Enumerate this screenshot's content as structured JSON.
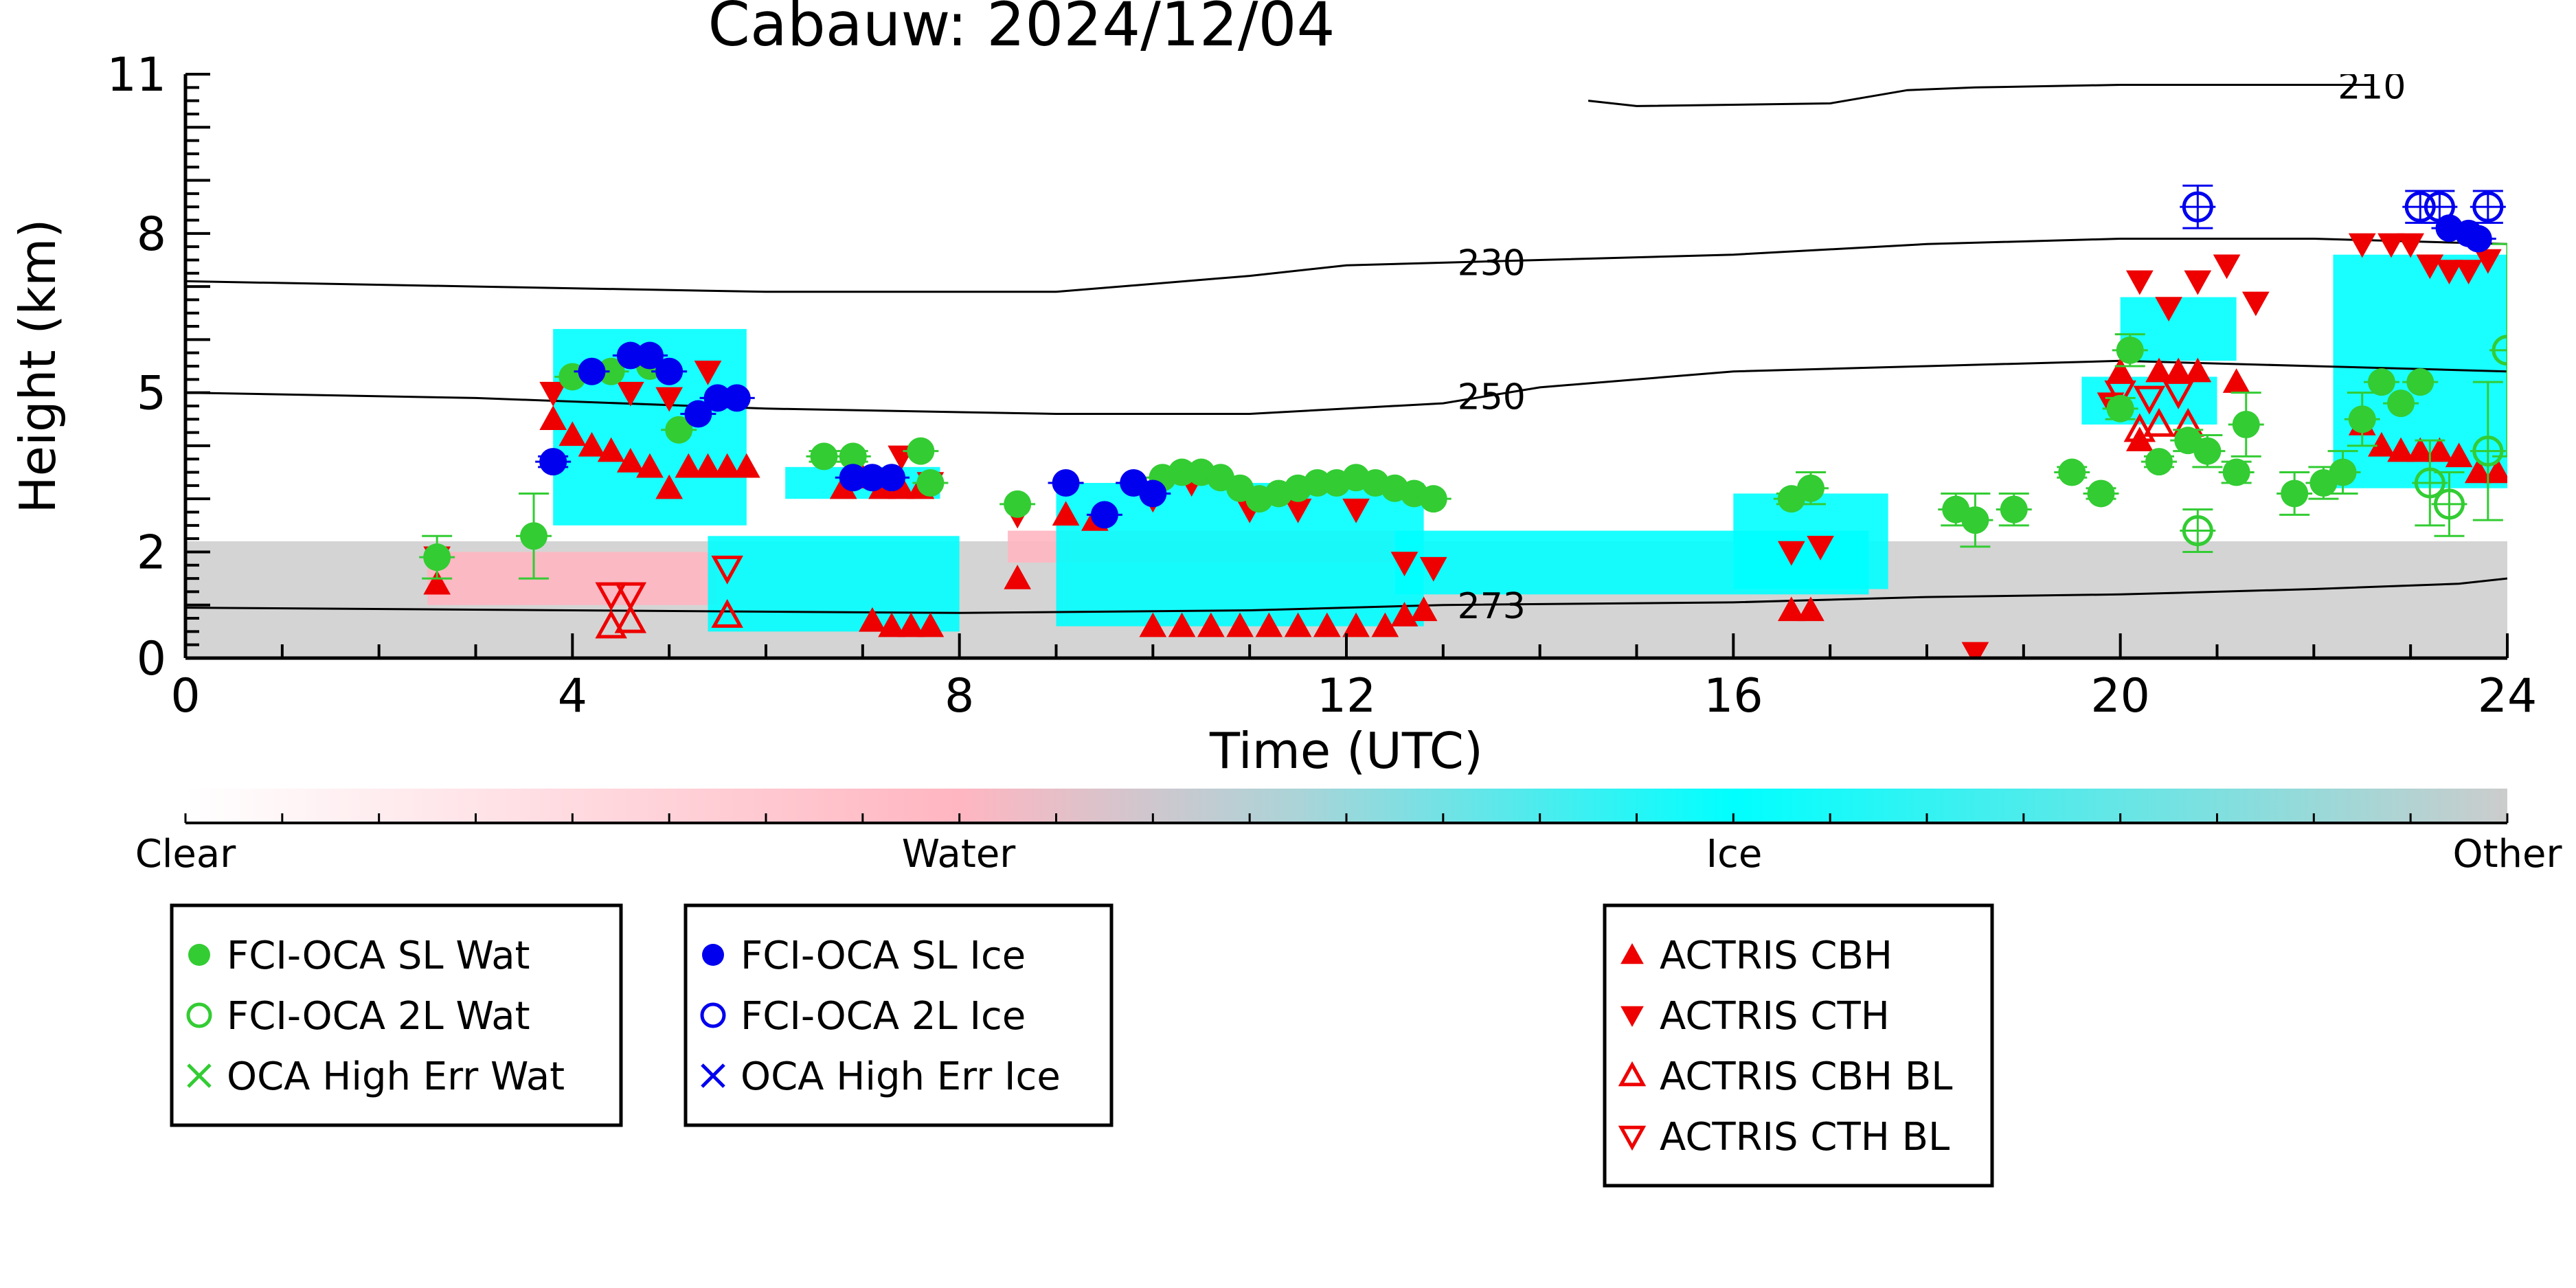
{
  "chart_data": {
    "type": "scatter",
    "title": "Cabauw: 2024/12/04",
    "xlabel": "Time (UTC)",
    "ylabel": "Height (km)",
    "xlim": [
      0,
      24
    ],
    "ylim": [
      0,
      11
    ],
    "x_ticks": [
      0,
      4,
      8,
      12,
      16,
      20,
      24
    ],
    "y_ticks": [
      0,
      2,
      5,
      8,
      11
    ],
    "colors": {
      "water_marker": "#33cc33",
      "ice_marker": "#0000ee",
      "actris": "#ee0000",
      "cloud_water": "#ffb6c1",
      "cloud_ice": "#00ffff",
      "cloud_other": "#cccccc"
    },
    "colorbar": {
      "labels": [
        "Clear",
        "Water",
        "Ice",
        "Other"
      ],
      "positions": [
        0,
        0.333,
        0.667,
        1
      ]
    },
    "contours": [
      {
        "label": "230",
        "label_x": 13.5,
        "points": [
          [
            0,
            7.1
          ],
          [
            3,
            7.0
          ],
          [
            6,
            6.9
          ],
          [
            9,
            6.9
          ],
          [
            11,
            7.2
          ],
          [
            12,
            7.4
          ],
          [
            14,
            7.5
          ],
          [
            16,
            7.6
          ],
          [
            18,
            7.8
          ],
          [
            20,
            7.9
          ],
          [
            22,
            7.9
          ],
          [
            24,
            7.8
          ]
        ]
      },
      {
        "label": "250",
        "label_x": 13.5,
        "points": [
          [
            0,
            5.0
          ],
          [
            3,
            4.9
          ],
          [
            6,
            4.7
          ],
          [
            9,
            4.6
          ],
          [
            11,
            4.6
          ],
          [
            13,
            4.8
          ],
          [
            14,
            5.1
          ],
          [
            16,
            5.4
          ],
          [
            18,
            5.5
          ],
          [
            20,
            5.6
          ],
          [
            22,
            5.5
          ],
          [
            24,
            5.4
          ]
        ]
      },
      {
        "label": "273",
        "label_x": 13.5,
        "points": [
          [
            0,
            0.95
          ],
          [
            4,
            0.9
          ],
          [
            8,
            0.85
          ],
          [
            11,
            0.9
          ],
          [
            13,
            1.0
          ],
          [
            16,
            1.05
          ],
          [
            18,
            1.15
          ],
          [
            20,
            1.2
          ],
          [
            22,
            1.3
          ],
          [
            23.5,
            1.4
          ],
          [
            24,
            1.5
          ]
        ]
      },
      {
        "label": "210",
        "label_x": 27.4,
        "points": [
          [
            14.5,
            10.5
          ],
          [
            15,
            10.4
          ],
          [
            17,
            10.45
          ],
          [
            17.8,
            10.7
          ],
          [
            18.5,
            10.75
          ],
          [
            20,
            10.8
          ],
          [
            21.4,
            10.8
          ],
          [
            22.6,
            10.8
          ]
        ]
      }
    ],
    "clouds": [
      {
        "kind": "other",
        "x0": 0,
        "x1": 24,
        "y0": 0,
        "y1": 2.2
      },
      {
        "kind": "water",
        "x0": 2.5,
        "x1": 5.5,
        "y0": 1.0,
        "y1": 2.0
      },
      {
        "kind": "water",
        "x0": 8.5,
        "x1": 12.5,
        "y0": 1.8,
        "y1": 2.4
      },
      {
        "kind": "ice",
        "x0": 3.8,
        "x1": 5.8,
        "y0": 2.5,
        "y1": 6.2
      },
      {
        "kind": "ice",
        "x0": 5.4,
        "x1": 8.0,
        "y0": 0.5,
        "y1": 2.3
      },
      {
        "kind": "ice",
        "x0": 6.2,
        "x1": 7.8,
        "y0": 3.0,
        "y1": 3.6
      },
      {
        "kind": "ice",
        "x0": 9.0,
        "x1": 12.8,
        "y0": 0.6,
        "y1": 3.3
      },
      {
        "kind": "ice",
        "x0": 12.5,
        "x1": 17.4,
        "y0": 1.2,
        "y1": 2.4
      },
      {
        "kind": "ice",
        "x0": 16.0,
        "x1": 17.6,
        "y0": 1.3,
        "y1": 3.1
      },
      {
        "kind": "ice",
        "x0": 20.0,
        "x1": 21.2,
        "y0": 5.6,
        "y1": 6.8
      },
      {
        "kind": "ice",
        "x0": 22.2,
        "x1": 24.0,
        "y0": 3.2,
        "y1": 7.6
      },
      {
        "kind": "ice",
        "x0": 19.6,
        "x1": 21.0,
        "y0": 4.4,
        "y1": 5.3
      }
    ],
    "series": [
      {
        "name": "FCI-OCA SL Wat",
        "marker": "circle-filled",
        "color": "#33cc33",
        "points": [
          [
            2.6,
            1.9,
            0.4
          ],
          [
            3.6,
            2.3,
            0.8
          ],
          [
            4.0,
            5.3,
            0
          ],
          [
            4.4,
            5.4,
            0
          ],
          [
            4.8,
            5.5,
            0
          ],
          [
            5.1,
            4.3,
            0
          ],
          [
            6.6,
            3.8,
            0.1
          ],
          [
            6.9,
            3.8,
            0.1
          ],
          [
            7.6,
            3.9,
            0
          ],
          [
            7.7,
            3.3,
            0
          ],
          [
            8.6,
            2.9,
            0
          ],
          [
            10.1,
            3.4,
            0
          ],
          [
            10.3,
            3.5,
            0
          ],
          [
            10.5,
            3.5,
            0
          ],
          [
            10.7,
            3.4,
            0
          ],
          [
            10.9,
            3.2,
            0
          ],
          [
            11.1,
            3.0,
            0
          ],
          [
            11.3,
            3.1,
            0
          ],
          [
            11.5,
            3.2,
            0
          ],
          [
            11.7,
            3.3,
            0
          ],
          [
            11.9,
            3.3,
            0
          ],
          [
            12.1,
            3.4,
            0
          ],
          [
            12.3,
            3.3,
            0
          ],
          [
            12.5,
            3.2,
            0
          ],
          [
            12.7,
            3.1,
            0
          ],
          [
            12.9,
            3.0,
            0
          ],
          [
            16.6,
            3.0,
            0.1
          ],
          [
            16.8,
            3.2,
            0.3
          ],
          [
            18.3,
            2.8,
            0.3
          ],
          [
            18.5,
            2.6,
            0.5
          ],
          [
            18.9,
            2.8,
            0.3
          ],
          [
            19.5,
            3.5,
            0.1
          ],
          [
            19.8,
            3.1,
            0.1
          ],
          [
            20.0,
            4.7,
            0.2
          ],
          [
            20.1,
            5.8,
            0.3
          ],
          [
            20.4,
            3.7,
            0.1
          ],
          [
            20.7,
            4.1,
            0.2
          ],
          [
            20.9,
            3.9,
            0.3
          ],
          [
            21.2,
            3.5,
            0.2
          ],
          [
            21.3,
            4.4,
            0.6
          ],
          [
            21.8,
            3.1,
            0.4
          ],
          [
            22.1,
            3.3,
            0.3
          ],
          [
            22.3,
            3.5,
            0.4
          ],
          [
            22.5,
            4.5,
            0.5
          ],
          [
            22.7,
            5.2,
            0
          ],
          [
            22.9,
            4.8,
            0
          ],
          [
            23.1,
            5.2,
            0
          ]
        ]
      },
      {
        "name": "FCI-OCA 2L Wat",
        "marker": "circle-open",
        "color": "#33cc33",
        "points": [
          [
            20.8,
            2.4,
            0.4
          ],
          [
            23.2,
            3.3,
            0.8
          ],
          [
            23.4,
            2.9,
            0.6
          ],
          [
            23.8,
            3.9,
            1.3
          ],
          [
            24.0,
            5.8,
            2.0
          ]
        ]
      },
      {
        "name": "OCA High Err Wat",
        "marker": "x",
        "color": "#33cc33",
        "points": []
      },
      {
        "name": "FCI-OCA SL Ice",
        "marker": "circle-filled",
        "color": "#0000ee",
        "points": [
          [
            3.8,
            3.7,
            0.1
          ],
          [
            4.2,
            5.4,
            0
          ],
          [
            4.6,
            5.7,
            0
          ],
          [
            4.8,
            5.7,
            0
          ],
          [
            5.0,
            5.4,
            0
          ],
          [
            5.3,
            4.6,
            0
          ],
          [
            5.5,
            4.9,
            0
          ],
          [
            5.7,
            4.9,
            0
          ],
          [
            6.9,
            3.4,
            0
          ],
          [
            7.1,
            3.4,
            0
          ],
          [
            7.3,
            3.4,
            0
          ],
          [
            9.1,
            3.3,
            0
          ],
          [
            9.5,
            2.7,
            0
          ],
          [
            9.8,
            3.3,
            0
          ],
          [
            10.0,
            3.1,
            0
          ],
          [
            23.4,
            8.1,
            0
          ],
          [
            23.6,
            8.0,
            0
          ],
          [
            23.7,
            7.9,
            0
          ]
        ]
      },
      {
        "name": "FCI-OCA 2L Ice",
        "marker": "circle-open",
        "color": "#0000ee",
        "points": [
          [
            20.8,
            8.5,
            0.4
          ],
          [
            23.1,
            8.5,
            0.3
          ],
          [
            23.3,
            8.5,
            0.3
          ],
          [
            23.8,
            8.5,
            0.3
          ]
        ]
      },
      {
        "name": "OCA High Err Ice",
        "marker": "x",
        "color": "#0000ee",
        "points": []
      }
    ],
    "actris": [
      {
        "name": "ACTRIS CBH",
        "marker": "triangle-up-filled",
        "points": [
          [
            2.6,
            1.4
          ],
          [
            3.8,
            4.5
          ],
          [
            4.0,
            4.2
          ],
          [
            4.2,
            4.0
          ],
          [
            4.4,
            3.9
          ],
          [
            4.6,
            3.7
          ],
          [
            4.8,
            3.6
          ],
          [
            5.0,
            3.2
          ],
          [
            5.2,
            3.6
          ],
          [
            5.4,
            3.6
          ],
          [
            5.6,
            3.6
          ],
          [
            5.8,
            3.6
          ],
          [
            6.8,
            3.2
          ],
          [
            7.0,
            3.4
          ],
          [
            7.2,
            3.2
          ],
          [
            7.4,
            3.2
          ],
          [
            7.6,
            3.2
          ],
          [
            7.1,
            0.7
          ],
          [
            7.3,
            0.6
          ],
          [
            7.5,
            0.6
          ],
          [
            7.7,
            0.6
          ],
          [
            8.6,
            1.5
          ],
          [
            9.1,
            2.7
          ],
          [
            9.4,
            2.6
          ],
          [
            10.0,
            0.6
          ],
          [
            10.3,
            0.6
          ],
          [
            10.6,
            0.6
          ],
          [
            10.9,
            0.6
          ],
          [
            11.2,
            0.6
          ],
          [
            11.5,
            0.6
          ],
          [
            11.8,
            0.6
          ],
          [
            12.1,
            0.6
          ],
          [
            12.4,
            0.6
          ],
          [
            12.6,
            0.8
          ],
          [
            12.8,
            0.9
          ],
          [
            16.6,
            0.9
          ],
          [
            16.8,
            0.9
          ],
          [
            20.0,
            5.4
          ],
          [
            20.2,
            4.1
          ],
          [
            20.4,
            5.4
          ],
          [
            20.6,
            5.4
          ],
          [
            20.8,
            5.4
          ],
          [
            21.2,
            5.2
          ],
          [
            22.5,
            4.4
          ],
          [
            22.7,
            4.0
          ],
          [
            22.9,
            3.9
          ],
          [
            23.1,
            3.9
          ],
          [
            23.3,
            3.9
          ],
          [
            23.5,
            3.8
          ],
          [
            23.7,
            3.5
          ],
          [
            23.9,
            3.5
          ]
        ]
      },
      {
        "name": "ACTRIS CTH",
        "marker": "triangle-down-filled",
        "points": [
          [
            2.6,
            1.9
          ],
          [
            3.8,
            5.0
          ],
          [
            4.6,
            5.0
          ],
          [
            5.0,
            4.9
          ],
          [
            5.4,
            5.4
          ],
          [
            7.4,
            3.8
          ],
          [
            7.7,
            3.3
          ],
          [
            8.6,
            2.7
          ],
          [
            10.0,
            3.0
          ],
          [
            10.4,
            3.3
          ],
          [
            11.0,
            2.8
          ],
          [
            11.5,
            2.8
          ],
          [
            12.1,
            2.8
          ],
          [
            12.6,
            1.8
          ],
          [
            12.9,
            1.7
          ],
          [
            16.6,
            2.0
          ],
          [
            16.9,
            2.1
          ],
          [
            18.5,
            0.1
          ],
          [
            19.9,
            4.8
          ],
          [
            20.2,
            7.1
          ],
          [
            20.5,
            6.6
          ],
          [
            20.8,
            7.1
          ],
          [
            21.1,
            7.4
          ],
          [
            21.4,
            6.7
          ],
          [
            22.5,
            7.8
          ],
          [
            22.8,
            7.8
          ],
          [
            23.0,
            7.8
          ],
          [
            23.2,
            7.4
          ],
          [
            23.4,
            7.3
          ],
          [
            23.6,
            7.3
          ],
          [
            23.8,
            7.5
          ]
        ]
      },
      {
        "name": "ACTRIS CBH BL",
        "marker": "triangle-up-open",
        "points": [
          [
            4.4,
            0.6
          ],
          [
            4.6,
            0.7
          ],
          [
            5.6,
            0.8
          ],
          [
            20.2,
            4.3
          ],
          [
            20.4,
            4.4
          ],
          [
            20.7,
            4.4
          ]
        ]
      },
      {
        "name": "ACTRIS CTH BL",
        "marker": "triangle-down-open",
        "points": [
          [
            4.4,
            1.2
          ],
          [
            4.6,
            1.2
          ],
          [
            5.6,
            1.7
          ],
          [
            20.0,
            5.0
          ],
          [
            20.3,
            4.9
          ],
          [
            20.6,
            5.0
          ]
        ]
      }
    ],
    "legend_groups": [
      [
        "FCI-OCA SL Wat",
        "FCI-OCA 2L Wat",
        "OCA High Err Wat"
      ],
      [
        "FCI-OCA SL Ice",
        "FCI-OCA 2L Ice",
        "OCA High Err Ice"
      ],
      [
        "ACTRIS CBH",
        "ACTRIS CTH",
        "ACTRIS CBH BL",
        "ACTRIS CTH BL"
      ]
    ]
  }
}
